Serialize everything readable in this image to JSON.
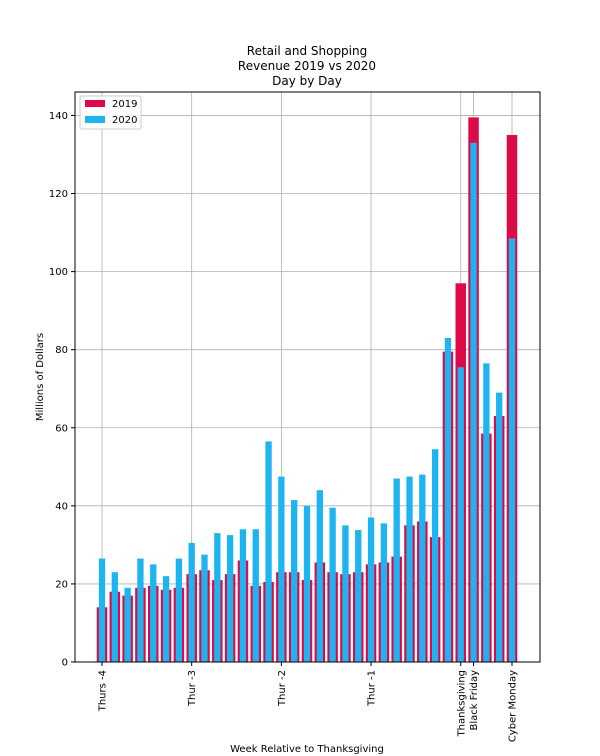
{
  "chart_data": {
    "type": "bar",
    "title_lines": [
      "Retail and Shopping",
      "Revenue 2019 vs 2020",
      "Day by Day"
    ],
    "xlabel": "Week Relative to Thanksgiving",
    "ylabel": "Millions of Dollars",
    "ylim": [
      0,
      146
    ],
    "yticks": [
      0,
      20,
      40,
      60,
      80,
      100,
      120,
      140
    ],
    "grid": true,
    "legend_position": "top-left",
    "x_ticks": [
      {
        "index": 0,
        "label": "Thurs -4"
      },
      {
        "index": 7,
        "label": "Thur -3"
      },
      {
        "index": 14,
        "label": "Thur -2"
      },
      {
        "index": 21,
        "label": "Thur -1"
      },
      {
        "index": 28,
        "label": "Thanksgiving"
      },
      {
        "index": 29,
        "label": "Black Friday"
      },
      {
        "index": 32,
        "label": "Cyber Monday"
      }
    ],
    "series": [
      {
        "name": "2019",
        "color": "#dc0a46",
        "values": [
          14,
          18,
          17,
          19,
          19.5,
          18.5,
          19,
          22.5,
          23.5,
          21,
          22.5,
          26,
          19.5,
          20.5,
          23,
          23,
          21,
          25.5,
          23,
          22.5,
          23,
          25,
          25.5,
          27,
          35,
          36,
          32,
          79.5,
          97,
          139.5,
          58.5,
          63,
          135
        ]
      },
      {
        "name": "2020",
        "color": "#1eb4f0",
        "values": [
          26.5,
          23,
          19,
          26.5,
          25,
          22,
          26.5,
          30.5,
          27.5,
          33,
          32.5,
          34,
          34,
          56.5,
          47.5,
          41.5,
          40,
          44,
          39.5,
          35,
          33.8,
          37,
          35.5,
          47,
          47.5,
          48,
          54.5,
          83,
          75.5,
          133,
          76.5,
          69,
          108.5
        ]
      }
    ]
  }
}
